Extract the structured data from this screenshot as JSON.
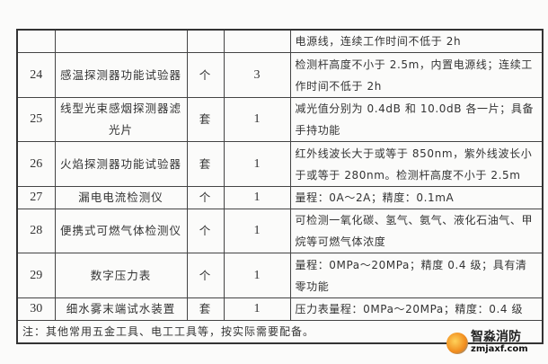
{
  "table": {
    "rows": [
      {
        "no": "",
        "name": "",
        "unit": "",
        "qty": "",
        "desc": "电源线，连续工作时间不低于 2h"
      },
      {
        "no": "24",
        "name": "感温探测器功能试验器",
        "unit": "个",
        "qty": "3",
        "desc": "检测杆高度不小于 2.5m，内置电源线；连续工作时间不低于 2h"
      },
      {
        "no": "25",
        "name": "线型光束感烟探测器滤光片",
        "unit": "套",
        "qty": "1",
        "desc": "减光值分别为 0.4dB 和 10.0dB 各一片；具备手持功能"
      },
      {
        "no": "26",
        "name": "火焰探测器功能试验器",
        "unit": "套",
        "qty": "1",
        "desc": "红外线波长大于或等于 850nm，紫外线波长小于或等于 280nm。检测杆高度不小于 2.5m"
      },
      {
        "no": "27",
        "name": "漏电电流检测仪",
        "unit": "个",
        "qty": "1",
        "desc": "量程：0A～2A；精度：0.1mA"
      },
      {
        "no": "28",
        "name": "便携式可燃气体检测仪",
        "unit": "个",
        "qty": "1",
        "desc": "可检测一氧化碳、氢气、氨气、液化石油气、甲烷等可燃气体浓度"
      },
      {
        "no": "29",
        "name": "数字压力表",
        "unit": "个",
        "qty": "1",
        "desc": "量程：0MPa～20MPa；精度 0.4 级；具有清零功能"
      },
      {
        "no": "30",
        "name": "细水雾末端试水装置",
        "unit": "套",
        "qty": "1",
        "desc": "压力表量程：0MPa～20MPa；精度：0.4 级"
      }
    ],
    "note": "注：其他常用五金工具、电工工具等，按实际需要配备。"
  },
  "watermark": {
    "name": "智淼消防",
    "url": "zmjaxf.com"
  }
}
